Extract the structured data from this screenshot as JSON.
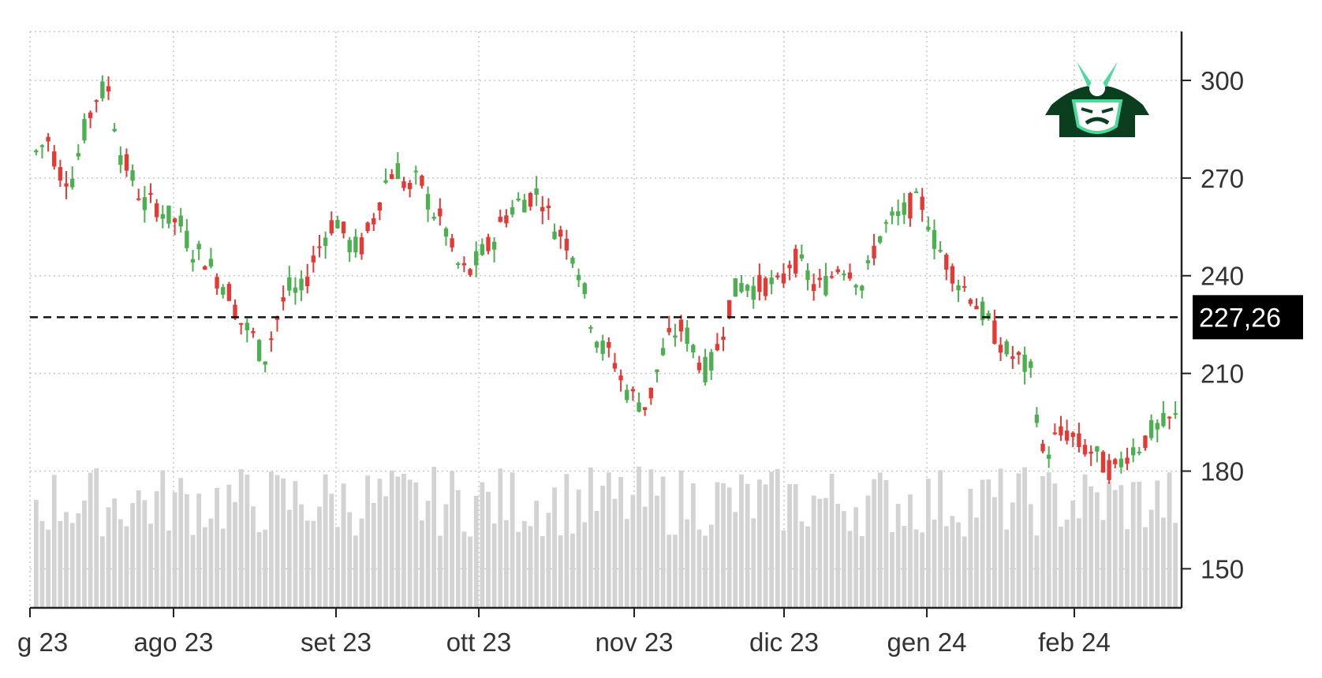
{
  "chart_data": {
    "type": "candlestick",
    "title": "",
    "xlabel": "",
    "ylabel": "",
    "ylim": [
      138,
      315
    ],
    "yticks": [
      150,
      180,
      210,
      240,
      270,
      300
    ],
    "grid": true,
    "x_tick_labels": [
      "g 23",
      "ago 23",
      "set 23",
      "ott 23",
      "nov 23",
      "dic 23",
      "gen 24",
      "feb 24"
    ],
    "last_price": 227.26,
    "last_price_label": "227,26",
    "up_color": "#4caf50",
    "down_color": "#e53935",
    "volume_color": "#d3d3d3",
    "logo_icon": "samurai-helmet-icon",
    "trading_days": [
      {
        "date": "2023-07-18",
        "month": "g 23"
      },
      {
        "date": "2023-08-01",
        "month": "ago 23"
      },
      {
        "date": "2023-09-01",
        "month": "set 23"
      },
      {
        "date": "2023-10-02",
        "month": "ott 23"
      },
      {
        "date": "2023-11-01",
        "month": "nov 23"
      },
      {
        "date": "2023-12-01",
        "month": "dic 23"
      },
      {
        "date": "2024-01-02",
        "month": "gen 24"
      },
      {
        "date": "2024-02-01",
        "month": "feb 24"
      }
    ],
    "price_path": [
      [
        278,
        282
      ],
      [
        272,
        270
      ],
      [
        284,
        295
      ],
      [
        298,
        278
      ],
      [
        270,
        262
      ],
      [
        262,
        258
      ],
      [
        256,
        248
      ],
      [
        246,
        240
      ],
      [
        236,
        226
      ],
      [
        222,
        214
      ],
      [
        226,
        236
      ],
      [
        234,
        244
      ],
      [
        252,
        258
      ],
      [
        250,
        248
      ],
      [
        256,
        268
      ],
      [
        274,
        266
      ],
      [
        270,
        260
      ],
      [
        256,
        244
      ],
      [
        240,
        246
      ],
      [
        250,
        258
      ],
      [
        262,
        264
      ],
      [
        266,
        256
      ],
      [
        252,
        246
      ],
      [
        230,
        218
      ],
      [
        216,
        206
      ],
      [
        202,
        200
      ],
      [
        214,
        222
      ],
      [
        224,
        216
      ],
      [
        210,
        220
      ],
      [
        234,
        238
      ],
      [
        236,
        238
      ],
      [
        236,
        246
      ],
      [
        242,
        236
      ],
      [
        238,
        244
      ],
      [
        242,
        236
      ],
      [
        250,
        256
      ],
      [
        258,
        262
      ],
      [
        262,
        250
      ],
      [
        244,
        238
      ],
      [
        234,
        228
      ],
      [
        222,
        216
      ],
      [
        214,
        210
      ],
      [
        184,
        190
      ],
      [
        192,
        188
      ],
      [
        186,
        182
      ],
      [
        180,
        186
      ],
      [
        188,
        192
      ],
      [
        194,
        196
      ]
    ]
  }
}
